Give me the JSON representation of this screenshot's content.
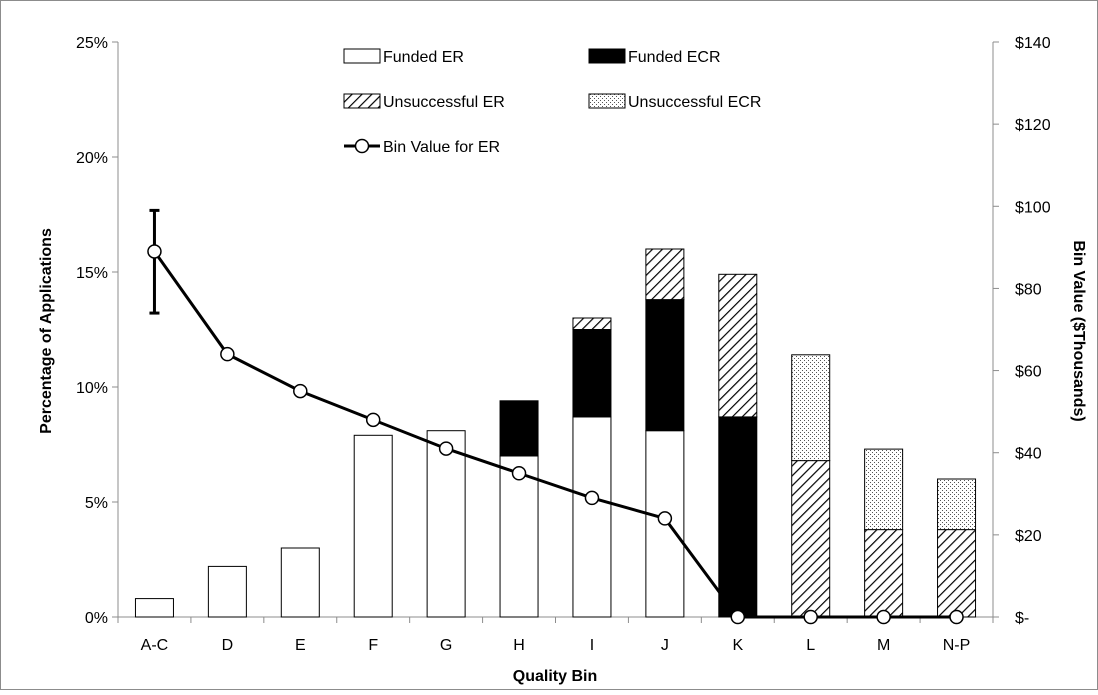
{
  "chart_data": {
    "type": "bar",
    "categories": [
      "A-C",
      "D",
      "E",
      "F",
      "G",
      "H",
      "I",
      "J",
      "K",
      "L",
      "M",
      "N-P"
    ],
    "series": [
      {
        "name": "Funded ER",
        "values": [
          0.8,
          2.2,
          3.0,
          7.9,
          8.1,
          7.0,
          8.7,
          8.1,
          0,
          0,
          0,
          0
        ],
        "color": "#ffffff",
        "pattern": "none"
      },
      {
        "name": "Funded ECR",
        "values": [
          0,
          0,
          0,
          0,
          0,
          2.4,
          3.8,
          5.7,
          8.7,
          0,
          0,
          0
        ],
        "color": "#000000",
        "pattern": "solid"
      },
      {
        "name": "Unsuccessful ER",
        "values": [
          0,
          0,
          0,
          0,
          0,
          0,
          0.5,
          2.2,
          6.2,
          6.8,
          3.8,
          3.8
        ],
        "color": "#000000",
        "pattern": "diagonal-hatch"
      },
      {
        "name": "Unsuccessful ECR",
        "values": [
          0,
          0,
          0,
          0,
          0,
          0,
          0,
          0,
          0,
          4.6,
          3.5,
          2.2
        ],
        "color": "#000000",
        "pattern": "dots"
      }
    ],
    "line_series": {
      "name": "Bin Value for ER",
      "axis": "right",
      "values": [
        89,
        64,
        55,
        48,
        41,
        35,
        29,
        24,
        0,
        0,
        0,
        0
      ],
      "error_bar": {
        "category": "A-C",
        "low": 74,
        "high": 99
      }
    },
    "title": "",
    "xlabel": "Quality Bin",
    "ylabel": "Percentage of Applications",
    "y2label": "Bin Value ($Thousands)",
    "ylim": [
      0,
      25
    ],
    "y2lim": [
      0,
      140
    ],
    "yticks": [
      "0%",
      "5%",
      "10%",
      "15%",
      "20%",
      "25%"
    ],
    "y2ticks": [
      "$-",
      "$20",
      "$40",
      "$60",
      "$80",
      "$100",
      "$120",
      "$140"
    ],
    "stacked": true,
    "grid": false,
    "legend_position": "top-center"
  }
}
